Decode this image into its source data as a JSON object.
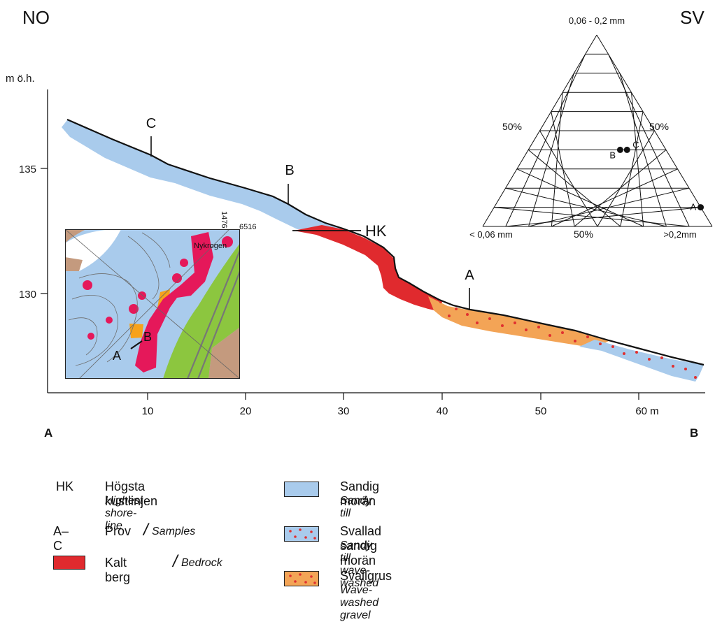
{
  "header": {
    "left_direction": "NO",
    "right_direction": "SV"
  },
  "profile": {
    "y_unit_label": "m ö.h.",
    "y_ticks": [
      "135",
      "130"
    ],
    "x_ticks": [
      "10",
      "20",
      "30",
      "40",
      "50",
      "60 m"
    ],
    "start_label": "A",
    "end_label": "B",
    "hk_label": "HK",
    "sample_labels": [
      "C",
      "B",
      "A"
    ]
  },
  "ternary": {
    "top_label": "0,06 - 0,2 mm",
    "bottom_left_label": "< 0,06 mm",
    "bottom_right_label": ">0,2mm",
    "left_mid_label": "50%",
    "right_mid_label": "50%",
    "bottom_mid_label": "50%",
    "points": [
      {
        "label": "A",
        "fine_pct": 0,
        "medium_pct": 10,
        "coarse_pct": 90
      },
      {
        "label": "B",
        "fine_pct": 20,
        "medium_pct": 40,
        "coarse_pct": 40
      },
      {
        "label": "C",
        "fine_pct": 17,
        "medium_pct": 40,
        "coarse_pct": 43
      }
    ]
  },
  "inset_map": {
    "coord_vertical": "1476",
    "coord_horizontal": "6516",
    "place_name": "Nykrogen",
    "label_a": "A",
    "label_b": "B"
  },
  "legend": {
    "hk_code": "HK",
    "hk_sv": "Högsta kustlinjen",
    "hk_en": "Highest shore-line",
    "samples_code": "A–C",
    "samples_sv": "Prov",
    "samples_en": "Samples",
    "separator": "/",
    "bedrock_sv": "Kalt berg",
    "bedrock_en": "Bedrock",
    "sandy_till_sv": "Sandig morän",
    "sandy_till_en": "Sandy till",
    "wave_till_sv": "Svallad sandig morän",
    "wave_till_en": "Sandy till, wave-washed",
    "gravel_sv": "Svallgrus",
    "gravel_en": "Wave-washed gravel"
  },
  "colors": {
    "sandy_till": "#a9cbec",
    "bedrock": "#e02a2e",
    "gravel": "#f3a456",
    "dots": "#e03030",
    "inset_rock": "#e5185a",
    "inset_green": "#8cc63f",
    "inset_brown": "#c49a7e",
    "inset_orange": "#f7a21b"
  }
}
